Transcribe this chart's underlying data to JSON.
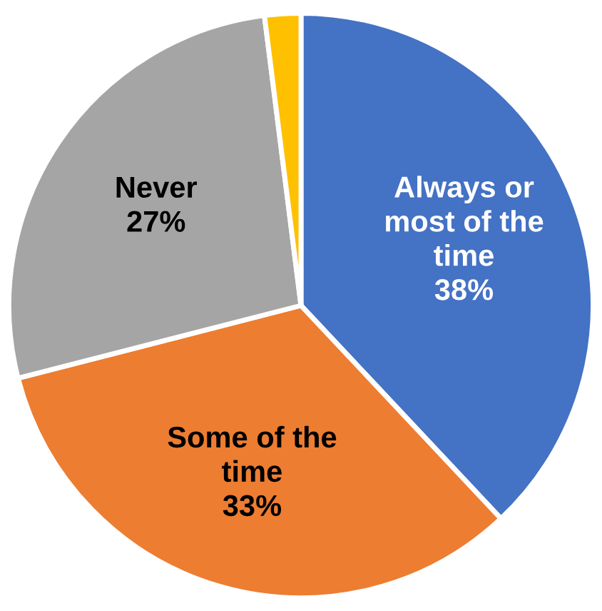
{
  "chart_data": {
    "type": "pie",
    "categories": [
      "Always or\nmost of the\ntime",
      "Some of the\ntime",
      "Never",
      null
    ],
    "values": [
      38,
      33,
      27,
      2
    ],
    "value_labels": [
      "38%",
      "33%",
      "27%",
      null
    ],
    "colors": [
      "#4472c4",
      "#ed7d31",
      "#a5a5a5",
      "#ffc000"
    ]
  }
}
